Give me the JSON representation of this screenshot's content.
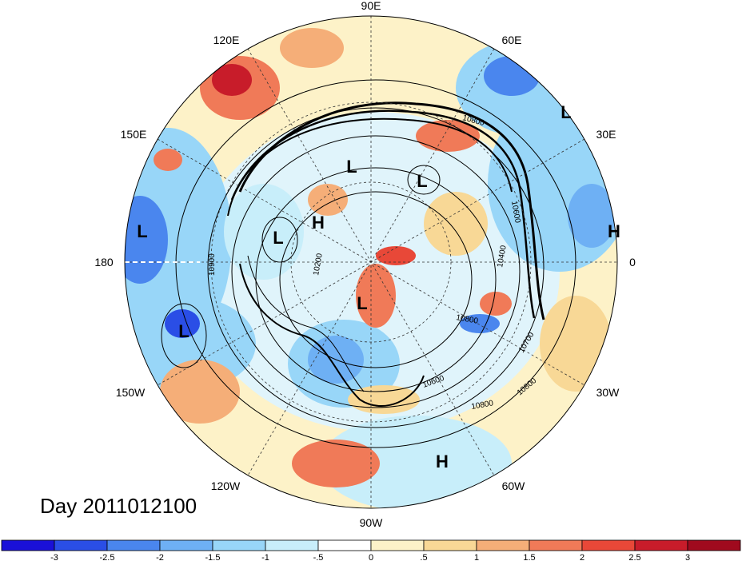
{
  "title": "Day 2011012100",
  "lon_labels": [
    "90E",
    "60E",
    "30E",
    "0",
    "30W",
    "60W",
    "90W",
    "120W",
    "150W",
    "180",
    "150E",
    "120E"
  ],
  "pressure_centers": [
    {
      "label": "L"
    },
    {
      "label": "L"
    },
    {
      "label": "L"
    },
    {
      "label": "L"
    },
    {
      "label": "L"
    },
    {
      "label": "L"
    },
    {
      "label": "L"
    },
    {
      "label": "H"
    },
    {
      "label": "H"
    },
    {
      "label": "H"
    }
  ],
  "contour_labels": [
    "10800",
    "10600",
    "10400",
    "10700",
    "10600",
    "10800",
    "10800",
    "10900",
    "10800",
    "10200"
  ],
  "colorbar": {
    "tick_labels": [
      "-3",
      "-2.5",
      "-2",
      "-1.5",
      "-1",
      "-.5",
      "0",
      ".5",
      "1",
      "1.5",
      "2",
      "2.5",
      "3"
    ],
    "colors": [
      "#1a10d8",
      "#2a4ee6",
      "#4a86ee",
      "#6eb0f4",
      "#98d6f8",
      "#c8eefa",
      "#ffffff",
      "#fdf2c8",
      "#f8d896",
      "#f5ae78",
      "#f07a58",
      "#e84838",
      "#c81c2a",
      "#a00a1e"
    ]
  },
  "anomaly_colors": {
    "strong_negative": "#2a4ee6",
    "negative": "#6eb0f4",
    "weak_negative": "#c8eefa",
    "weak_positive": "#fdf2c8",
    "positive": "#f5ae78",
    "strong_positive": "#e84838"
  }
}
